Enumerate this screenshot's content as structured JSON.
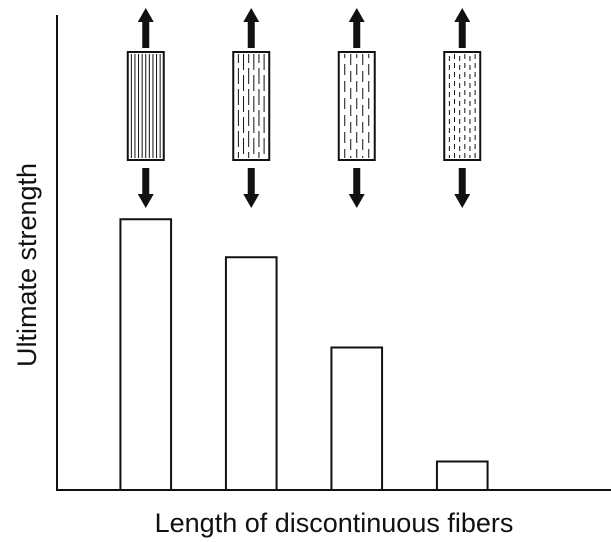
{
  "chart_data": {
    "type": "bar",
    "xlabel": "Length of discontinuous fibers",
    "ylabel": "Ultimate strength",
    "categories": [
      null,
      null,
      null,
      null
    ],
    "values": [
      57,
      49,
      30,
      6
    ],
    "color": "#ffffff",
    "ylim": [
      0,
      100
    ]
  }
}
